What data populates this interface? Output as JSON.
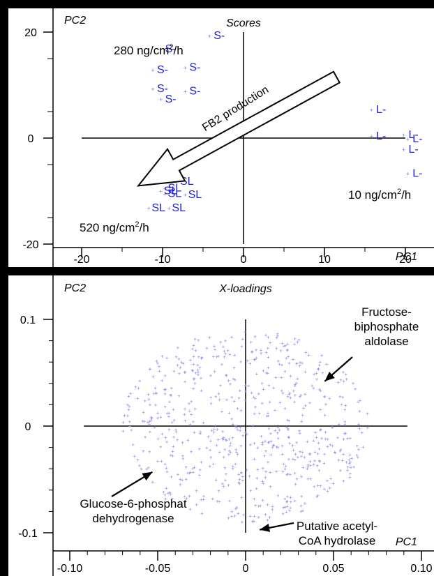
{
  "chart_data": [
    {
      "type": "scatter",
      "title": "Scores",
      "xlabel": "PC1",
      "ylabel": "PC2",
      "xlim": [
        -23,
        22
      ],
      "ylim": [
        -23,
        23
      ],
      "xticks": [
        -20,
        -10,
        0,
        10,
        20
      ],
      "yticks": [
        -20,
        0,
        20
      ],
      "tick_labels_x": [
        "-20",
        "-10",
        "0",
        "10",
        "20"
      ],
      "tick_labels_y": [
        "-20",
        "0",
        "20"
      ],
      "grid": false,
      "series": [
        {
          "name": "S-",
          "color": "#1f1fd6",
          "points": [
            [
              -3,
              19.5
            ],
            [
              -9,
              17
            ],
            [
              -6,
              13.5
            ],
            [
              -10,
              13
            ],
            [
              -6,
              9
            ],
            [
              -10,
              9.5
            ],
            [
              -9,
              7.5
            ]
          ]
        },
        {
          "name": "L-",
          "color": "#1f1fd6",
          "points": [
            [
              17,
              5.5
            ],
            [
              17,
              0.5
            ],
            [
              21,
              0.8
            ],
            [
              21.5,
              0
            ],
            [
              21,
              -2
            ],
            [
              21.5,
              -6.5
            ]
          ]
        },
        {
          "name": "SL",
          "color": "#1f1fd6",
          "points": [
            [
              -7,
              -8
            ],
            [
              -8.5,
              -9.3
            ],
            [
              -9,
              -9.8
            ],
            [
              -8.5,
              -10.3
            ],
            [
              -6,
              -10.5
            ],
            [
              -10.5,
              -13
            ],
            [
              -8,
              -13
            ]
          ]
        }
      ],
      "annotations": [
        {
          "text": "280 ng/cm",
          "sup": "2",
          "suffix": "/h"
        },
        {
          "text": "10 ng/cm",
          "sup": "2",
          "suffix": "/h"
        },
        {
          "text": "520 ng/cm",
          "sup": "2",
          "suffix": "/h"
        },
        {
          "text": "FB2 production"
        }
      ],
      "arrow": {
        "from": [
          11.5,
          11.5
        ],
        "to": [
          -13,
          -9
        ]
      }
    },
    {
      "type": "scatter",
      "title": "X-loadings",
      "xlabel": "PC1",
      "ylabel": "PC2",
      "xlim": [
        -0.12,
        0.11
      ],
      "ylim": [
        -0.11,
        0.11
      ],
      "xticks": [
        -0.1,
        -0.05,
        0,
        0.05,
        0.1
      ],
      "yticks": [
        -0.1,
        0,
        0.1
      ],
      "tick_labels_x": [
        "-0.10",
        "-0.05",
        "0",
        "0.05",
        "0.10"
      ],
      "tick_labels_y": [
        "-0.1",
        "0",
        "0.1"
      ],
      "grid": false,
      "point_color": "#8a8ae8",
      "cloud": {
        "x_range": [
          -0.07,
          0.07
        ],
        "y_range": [
          -0.09,
          0.09
        ],
        "n": 650
      },
      "annotations": [
        {
          "text": [
            "Fructose-",
            "biphosphate",
            "aldolase"
          ],
          "target": [
            0.045,
            0.042
          ]
        },
        {
          "text": [
            "Glucose-6-phosphat",
            "dehydrogenase"
          ],
          "target": [
            -0.053,
            -0.043
          ]
        },
        {
          "text": [
            "Putative acetyl-",
            "CoA hydrolase"
          ],
          "target": [
            0.008,
            -0.088
          ]
        }
      ]
    }
  ]
}
